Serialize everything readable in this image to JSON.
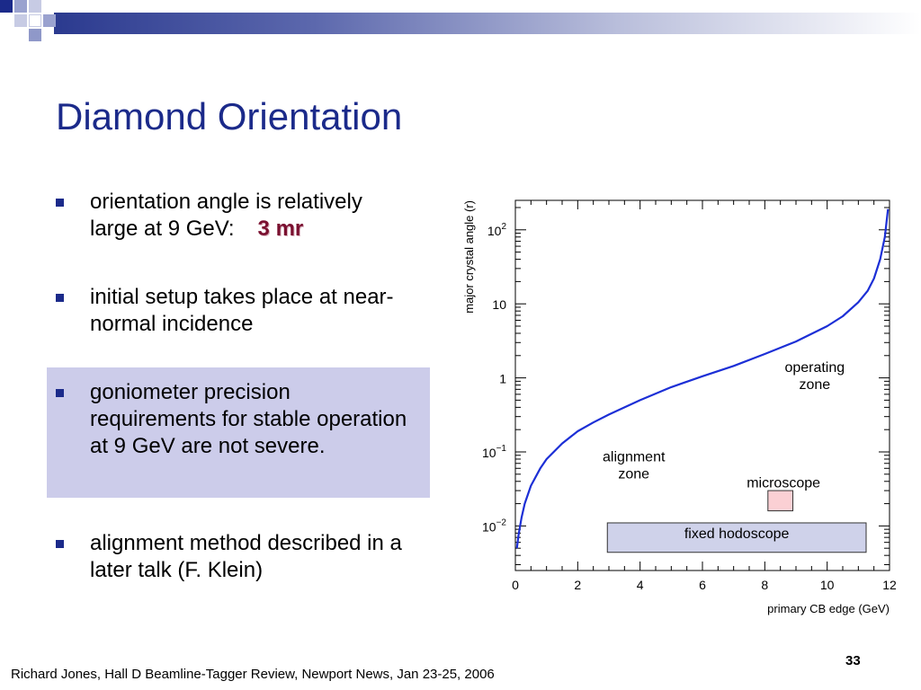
{
  "slide": {
    "title": "Diamond Orientation",
    "bullets": [
      {
        "text": "orientation angle is relatively large at 9 GeV:",
        "emphasis": "3 mr"
      },
      {
        "text": "initial setup takes place at near-normal incidence"
      },
      {
        "text": "goniometer precision requirements for stable operation at 9 GeV are not severe.",
        "highlighted": true
      },
      {
        "text": "alignment method described in a later talk (F. Klein)"
      }
    ],
    "footer": "Richard Jones, Hall D Beamline-Tagger Review, Newport News, Jan 23-25, 2006",
    "page_number": "33",
    "colors": {
      "title": "#1b2a8a",
      "emphasis": "#7a1030",
      "highlight_box": "#ccccea",
      "curve": "#1c2fd6"
    }
  },
  "chart_data": {
    "type": "line",
    "title": "",
    "xlabel": "primary CB edge (GeV)",
    "ylabel": "major crystal angle (r)",
    "xlim": [
      0,
      12
    ],
    "ylim": [
      0.0025,
      250
    ],
    "y_scale": "log",
    "x_ticks": [
      "0",
      "2",
      "4",
      "6",
      "8",
      "10",
      "12"
    ],
    "y_ticks": [
      {
        "value": 0.01,
        "base": "10",
        "exp": "−2"
      },
      {
        "value": 0.1,
        "base": "10",
        "exp": "−1"
      },
      {
        "value": 1,
        "base": "1",
        "exp": ""
      },
      {
        "value": 10,
        "base": "10",
        "exp": ""
      },
      {
        "value": 100,
        "base": "10",
        "exp": "2"
      }
    ],
    "series": [
      {
        "x": [
          0.05,
          0.1,
          0.2,
          0.3,
          0.5,
          0.8,
          1.0,
          1.5,
          2.0,
          2.5,
          3.0,
          4.0,
          5.0,
          6.0,
          7.0,
          8.0,
          9.0,
          10.0,
          10.5,
          11.0,
          11.3,
          11.5,
          11.7,
          11.85,
          11.95
        ],
        "y": [
          0.005,
          0.0075,
          0.013,
          0.02,
          0.035,
          0.06,
          0.08,
          0.13,
          0.19,
          0.25,
          0.32,
          0.5,
          0.75,
          1.05,
          1.45,
          2.1,
          3.1,
          5.0,
          6.8,
          10.5,
          15,
          22,
          40,
          80,
          190
        ]
      }
    ],
    "grid": false,
    "annotations": [
      {
        "label_lines": [
          "operating",
          "zone"
        ],
        "x": 9.6,
        "y": 1.2
      },
      {
        "label_lines": [
          "alignment",
          "zone"
        ],
        "x": 3.8,
        "y": 0.075
      },
      {
        "label_lines": [
          "microscope"
        ],
        "x": 8.6,
        "y": 0.033
      },
      {
        "label_lines": [
          "fixed hodoscope"
        ],
        "x": 7.1,
        "y": 0.0068
      }
    ],
    "regions": [
      {
        "name": "microscope",
        "x": [
          8.1,
          8.9
        ],
        "y": [
          0.016,
          0.03
        ],
        "color": "#fbd0d4"
      },
      {
        "name": "fixed hodoscope",
        "x": [
          2.95,
          11.25
        ],
        "y": [
          0.0044,
          0.011
        ],
        "color": "#cfd2ea"
      }
    ]
  }
}
